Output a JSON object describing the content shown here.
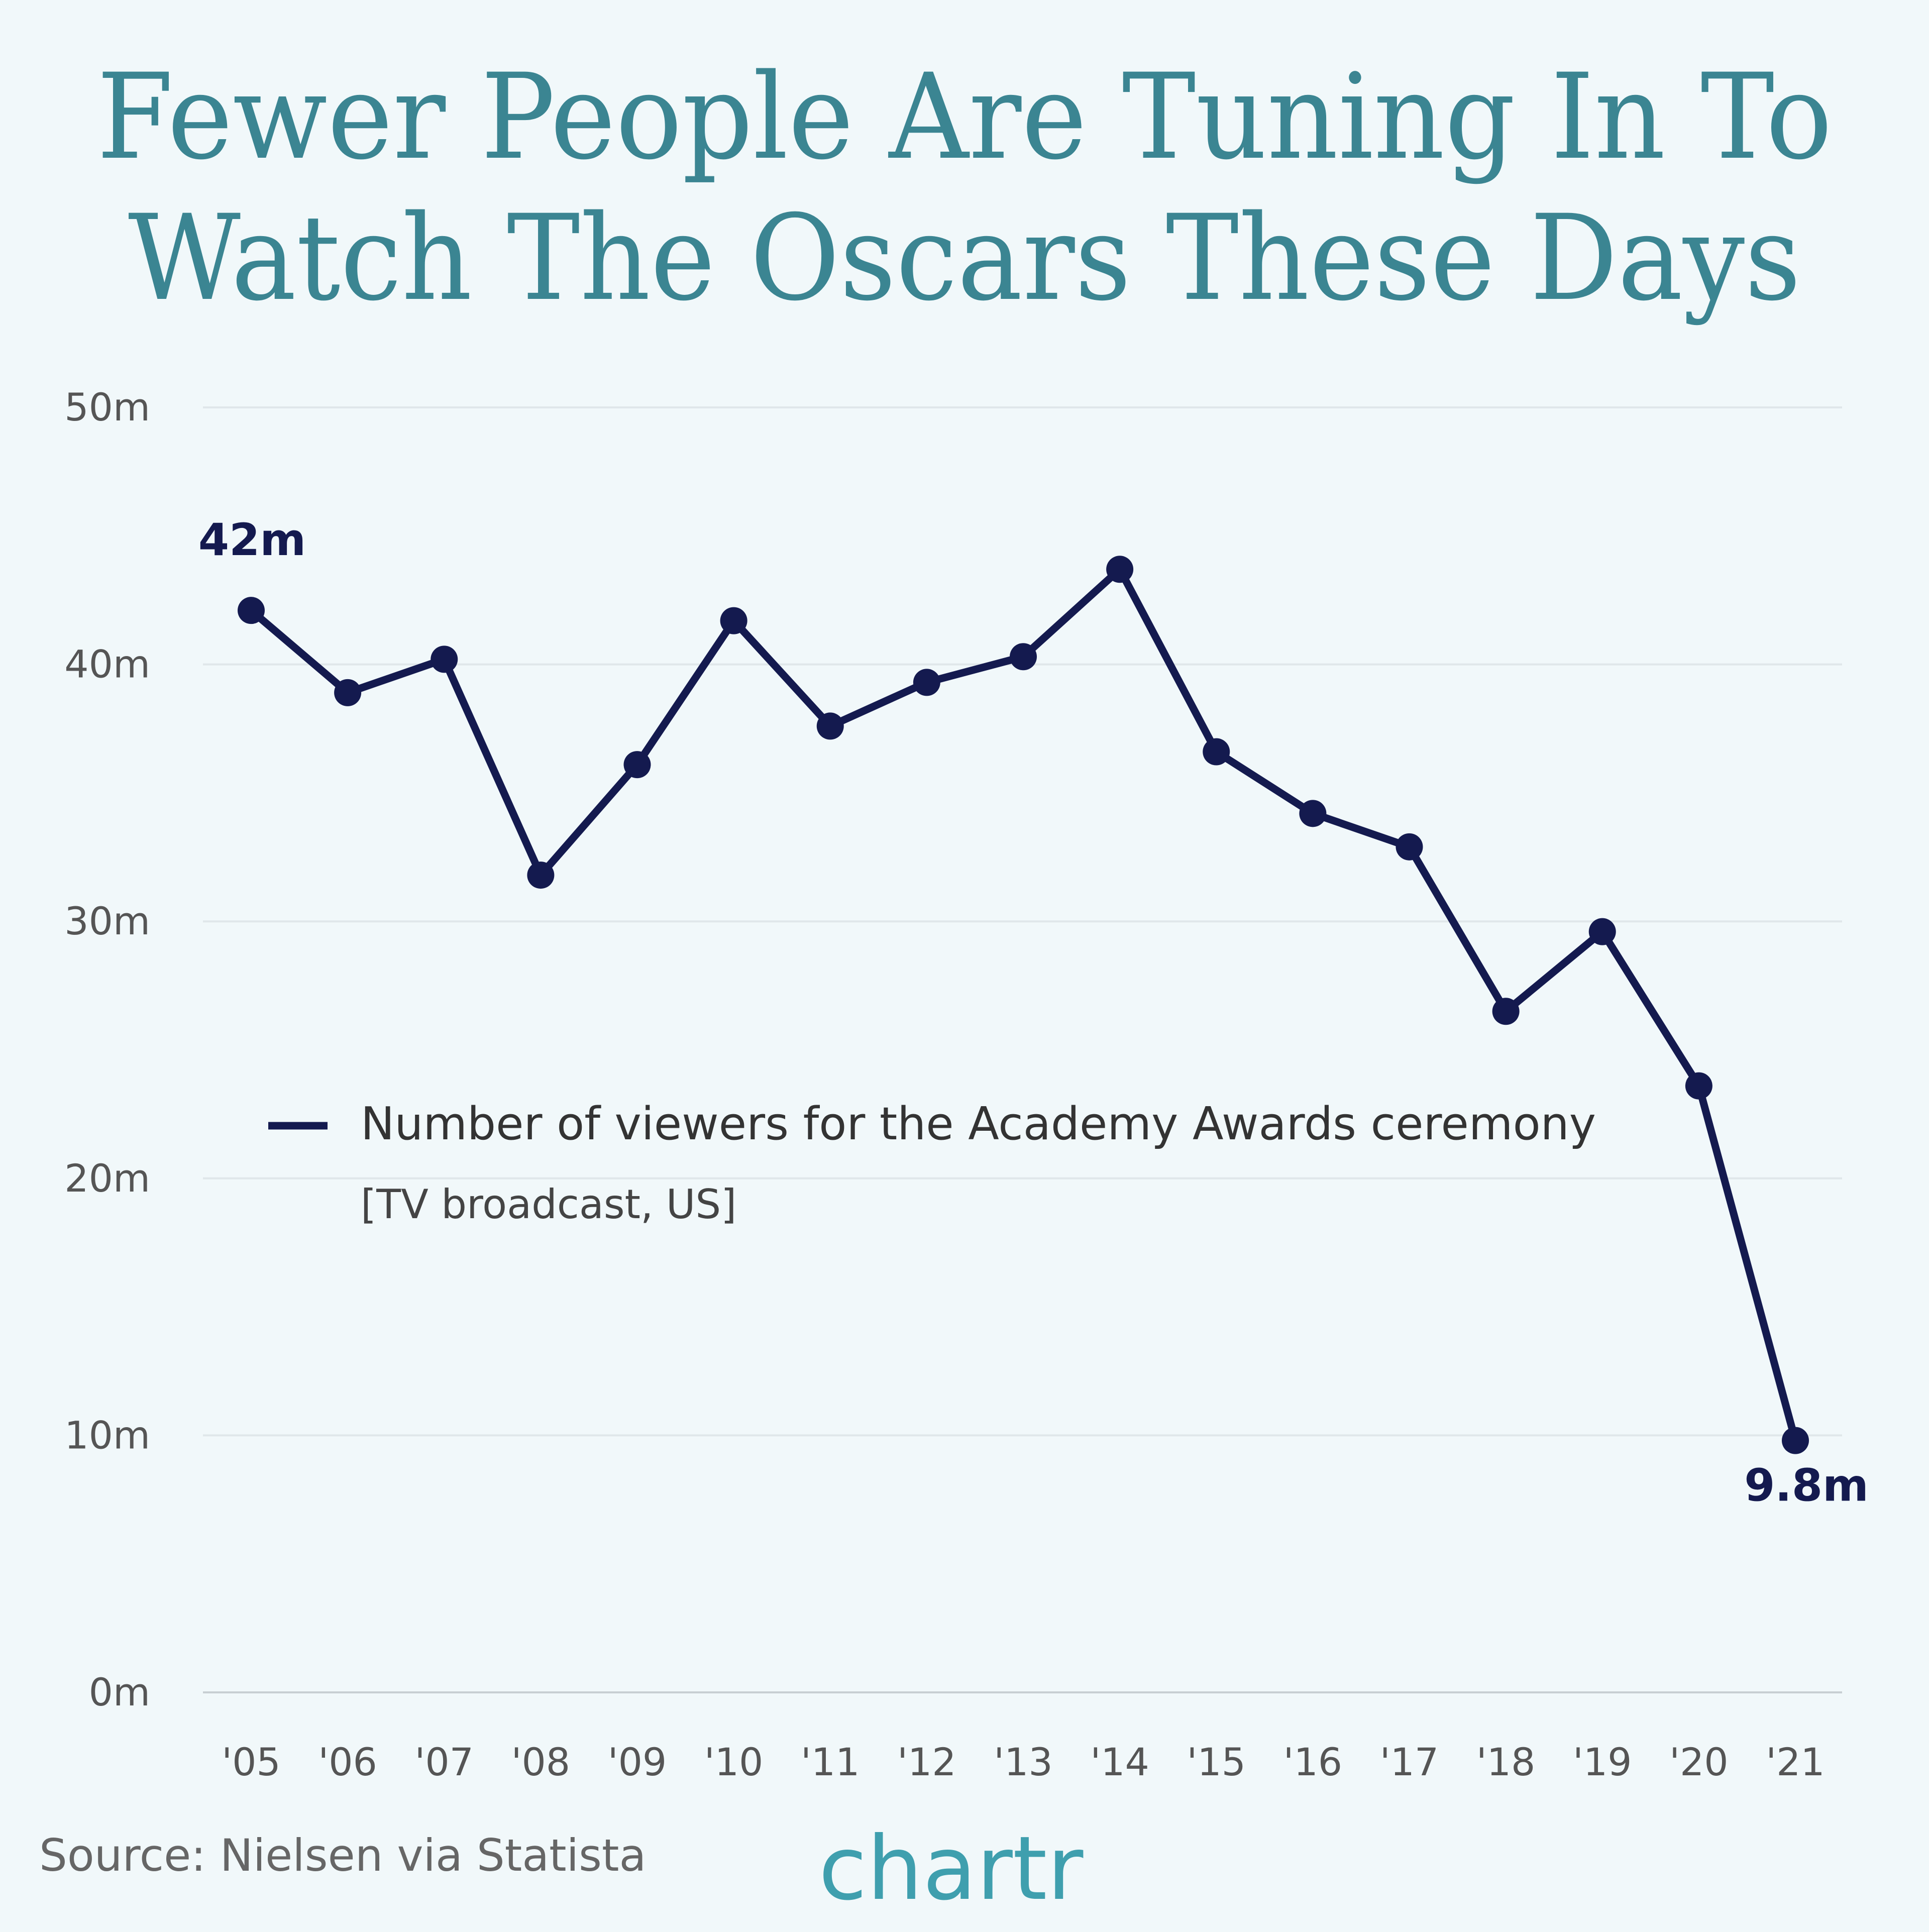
{
  "chart_data": {
    "type": "line",
    "title": [
      "Fewer People Are Tuning In To",
      "Watch The Oscars These Days"
    ],
    "subtitle": "[TV broadcast, US]",
    "source": "Source: Nielsen via Statista",
    "brand": "chartr",
    "categories": [
      "'05",
      "'06",
      "'07",
      "'08",
      "'09",
      "'10",
      "'11",
      "'12",
      "'13",
      "'14",
      "'15",
      "'16",
      "'17",
      "'18",
      "'19",
      "'20",
      "'21"
    ],
    "series": [
      {
        "name": "Number of viewers for the Academy Awards ceremony",
        "color": "#141a4f",
        "values": [
          42.1,
          38.9,
          40.2,
          31.8,
          36.1,
          41.7,
          37.6,
          39.3,
          40.3,
          43.7,
          36.6,
          34.2,
          32.9,
          26.5,
          29.6,
          23.6,
          9.8
        ],
        "value_labels": [
          "42m",
          null,
          null,
          null,
          null,
          null,
          null,
          null,
          null,
          null,
          null,
          null,
          null,
          null,
          null,
          null,
          "9.8m"
        ]
      }
    ],
    "ylim": [
      0,
      50
    ],
    "yticks": [
      {
        "value": 0,
        "label": "0m"
      },
      {
        "value": 10,
        "label": "10m"
      },
      {
        "value": 20,
        "label": "20m"
      },
      {
        "value": 30,
        "label": "30m"
      },
      {
        "value": 40,
        "label": "40m"
      },
      {
        "value": 50,
        "label": "50m"
      }
    ],
    "grid": true
  }
}
